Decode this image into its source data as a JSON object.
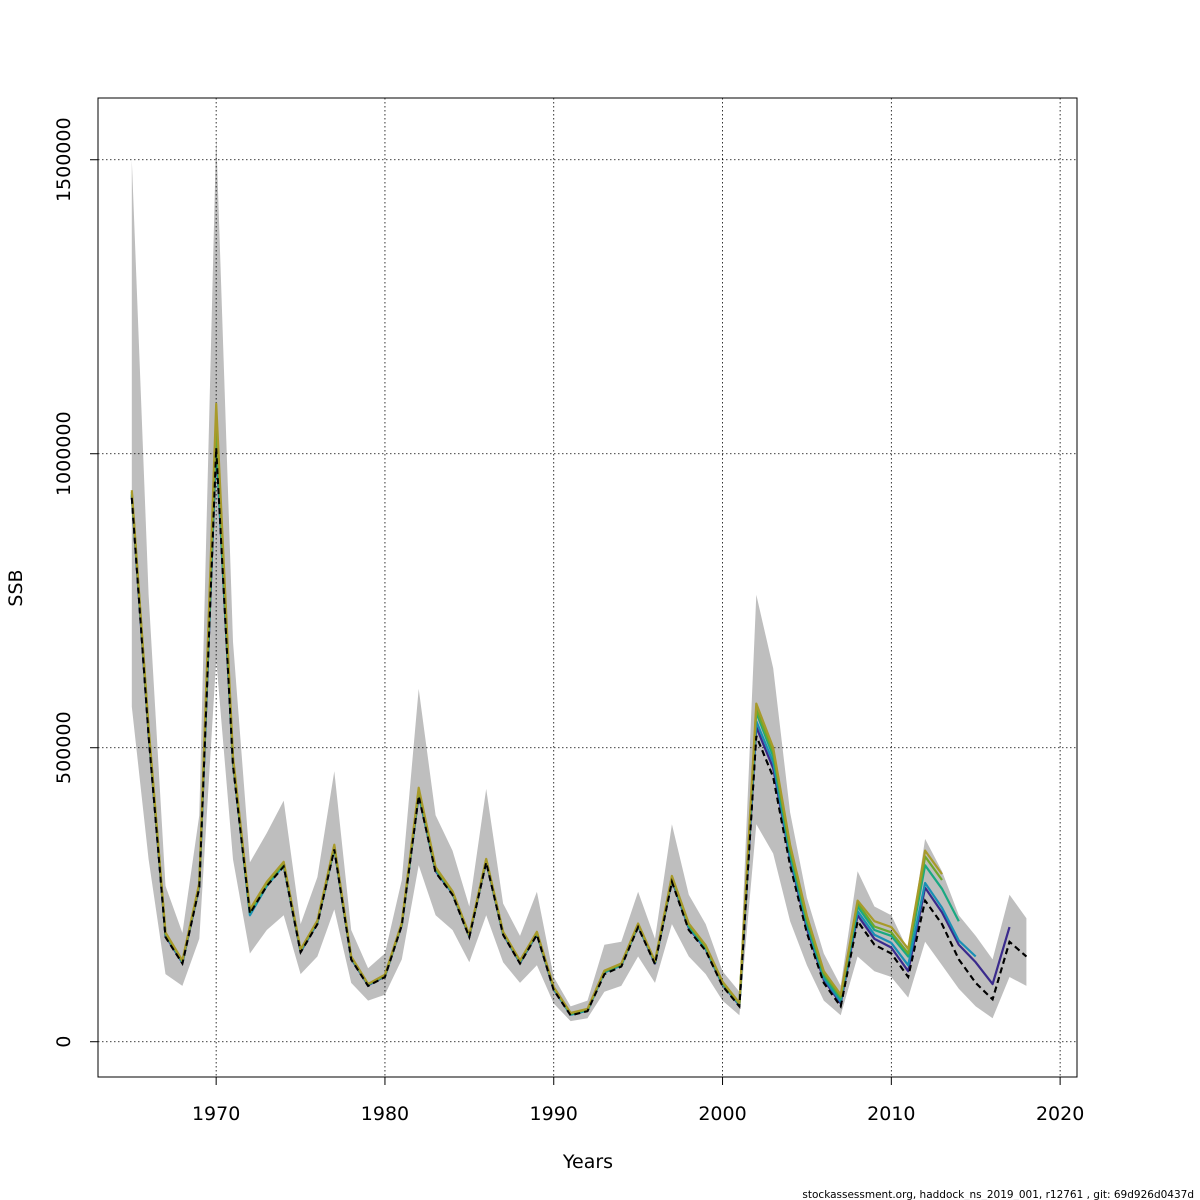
{
  "chart_data": {
    "type": "line",
    "title": "",
    "xlabel": "Years",
    "ylabel": "SSB",
    "xlim": [
      1963,
      2021
    ],
    "ylim": [
      -60000,
      1605000
    ],
    "xticks": [
      1970,
      1980,
      1990,
      2000,
      2010,
      2020
    ],
    "yticks": [
      0,
      500000,
      1000000,
      1500000
    ],
    "grid": true,
    "footer": "stockassessment.org, haddock_ns_2019_001, r12761 , git: 69d926d0437d",
    "confidence_band": {
      "x": [
        1965,
        1966,
        1967,
        1968,
        1969,
        1970,
        1971,
        1972,
        1973,
        1974,
        1975,
        1976,
        1977,
        1978,
        1979,
        1980,
        1981,
        1982,
        1983,
        1984,
        1985,
        1986,
        1987,
        1988,
        1989,
        1990,
        1991,
        1992,
        1993,
        1994,
        1995,
        1996,
        1997,
        1998,
        1999,
        2000,
        2001,
        2002,
        2003,
        2004,
        2005,
        2006,
        2007,
        2008,
        2009,
        2010,
        2011,
        2012,
        2013,
        2014,
        2015,
        2016,
        2017,
        2018
      ],
      "lower": [
        570000,
        310000,
        115000,
        95000,
        175000,
        650000,
        310000,
        150000,
        190000,
        215000,
        115000,
        145000,
        225000,
        100000,
        70000,
        80000,
        140000,
        300000,
        215000,
        190000,
        135000,
        215000,
        135000,
        100000,
        130000,
        65000,
        35000,
        40000,
        85000,
        95000,
        145000,
        100000,
        200000,
        145000,
        115000,
        70000,
        45000,
        370000,
        320000,
        205000,
        130000,
        70000,
        45000,
        145000,
        120000,
        110000,
        75000,
        170000,
        130000,
        90000,
        60000,
        40000,
        110000,
        95000
      ],
      "upper": [
        1500000,
        760000,
        265000,
        185000,
        385000,
        1540000,
        680000,
        305000,
        355000,
        410000,
        200000,
        280000,
        460000,
        190000,
        125000,
        150000,
        275000,
        600000,
        385000,
        325000,
        230000,
        430000,
        235000,
        180000,
        255000,
        110000,
        60000,
        70000,
        165000,
        170000,
        255000,
        175000,
        370000,
        250000,
        200000,
        120000,
        85000,
        760000,
        635000,
        390000,
        245000,
        150000,
        95000,
        290000,
        230000,
        215000,
        155000,
        345000,
        290000,
        215000,
        180000,
        140000,
        250000,
        210000
      ]
    },
    "series": [
      {
        "name": "",
        "color": "#000000",
        "dash": true,
        "x": [
          1965,
          1966,
          1967,
          1968,
          1969,
          1970,
          1971,
          1972,
          1973,
          1974,
          1975,
          1976,
          1977,
          1978,
          1979,
          1980,
          1981,
          1982,
          1983,
          1984,
          1985,
          1986,
          1987,
          1988,
          1989,
          1990,
          1991,
          1992,
          1993,
          1994,
          1995,
          1996,
          1997,
          1998,
          1999,
          2000,
          2001,
          2002,
          2003,
          2004,
          2005,
          2006,
          2007,
          2008,
          2009,
          2010,
          2011,
          2012,
          2013,
          2014,
          2015,
          2016,
          2017,
          2018
        ],
        "y": [
          925000,
          520000,
          178000,
          133000,
          262000,
          1010000,
          470000,
          218000,
          265000,
          298000,
          152000,
          200000,
          327000,
          140000,
          95000,
          110000,
          198000,
          418000,
          288000,
          250000,
          178000,
          305000,
          182000,
          133000,
          182000,
          88000,
          45000,
          52000,
          115000,
          128000,
          195000,
          132000,
          272000,
          190000,
          155000,
          95000,
          60000,
          520000,
          450000,
          300000,
          185000,
          100000,
          60000,
          205000,
          165000,
          150000,
          110000,
          240000,
          200000,
          140000,
          100000,
          72000,
          170000,
          145000
        ]
      },
      {
        "name": "",
        "color": "#3a2a8c",
        "dash": false,
        "x": [
          1965,
          1966,
          1967,
          1968,
          1969,
          1970,
          1971,
          1972,
          1973,
          1974,
          1975,
          1976,
          1977,
          1978,
          1979,
          1980,
          1981,
          1982,
          1983,
          1984,
          1985,
          1986,
          1987,
          1988,
          1989,
          1990,
          1991,
          1992,
          1993,
          1994,
          1995,
          1996,
          1997,
          1998,
          1999,
          2000,
          2001,
          2002,
          2003,
          2004,
          2005,
          2006,
          2007,
          2008,
          2009,
          2010,
          2011,
          2012,
          2013,
          2014,
          2015,
          2016,
          2017
        ],
        "y": [
          928000,
          525000,
          180000,
          134000,
          264000,
          1015000,
          475000,
          220000,
          267000,
          300000,
          153000,
          202000,
          329000,
          141000,
          96000,
          111000,
          199000,
          420000,
          290000,
          252000,
          179000,
          307000,
          183000,
          134000,
          183000,
          89000,
          46000,
          53000,
          118000,
          130000,
          197000,
          133000,
          275000,
          193000,
          157000,
          97000,
          62000,
          535000,
          465000,
          310000,
          192000,
          105000,
          65000,
          215000,
          175000,
          160000,
          120000,
          262000,
          220000,
          165000,
          135000,
          98000,
          195000
        ]
      },
      {
        "name": "",
        "color": "#1a8fb5",
        "dash": false,
        "x": [
          1965,
          1966,
          1967,
          1968,
          1969,
          1970,
          1971,
          1972,
          1973,
          1974,
          1975,
          1976,
          1977,
          1978,
          1979,
          1980,
          1981,
          1982,
          1983,
          1984,
          1985,
          1986,
          1987,
          1988,
          1989,
          1990,
          1991,
          1992,
          1993,
          1994,
          1995,
          1996,
          1997,
          1998,
          1999,
          2000,
          2001,
          2002,
          2003,
          2004,
          2005,
          2006,
          2007,
          2008,
          2009,
          2010,
          2011,
          2012,
          2013,
          2014,
          2015
        ],
        "y": [
          930000,
          528000,
          182000,
          135000,
          266000,
          1020000,
          478000,
          215000,
          265000,
          300000,
          154000,
          203000,
          330000,
          142000,
          97000,
          112000,
          200000,
          422000,
          292000,
          253000,
          180000,
          308000,
          184000,
          135000,
          184000,
          90000,
          46000,
          53000,
          118000,
          130000,
          198000,
          134000,
          277000,
          195000,
          158000,
          98000,
          63000,
          545000,
          475000,
          315000,
          198000,
          108000,
          68000,
          222000,
          182000,
          168000,
          130000,
          270000,
          228000,
          172000,
          145000
        ]
      },
      {
        "name": "",
        "color": "#1aa882",
        "dash": false,
        "x": [
          1965,
          1966,
          1967,
          1968,
          1969,
          1970,
          1971,
          1972,
          1973,
          1974,
          1975,
          1976,
          1977,
          1978,
          1979,
          1980,
          1981,
          1982,
          1983,
          1984,
          1985,
          1986,
          1987,
          1988,
          1989,
          1990,
          1991,
          1992,
          1993,
          1994,
          1995,
          1996,
          1997,
          1998,
          1999,
          2000,
          2001,
          2002,
          2003,
          2004,
          2005,
          2006,
          2007,
          2008,
          2009,
          2010,
          2011,
          2012,
          2013,
          2014
        ],
        "y": [
          932000,
          530000,
          183000,
          136000,
          267000,
          1030000,
          480000,
          220000,
          268000,
          302000,
          155000,
          204000,
          331000,
          143000,
          97000,
          112000,
          200000,
          424000,
          293000,
          254000,
          180000,
          309000,
          185000,
          136000,
          185000,
          91000,
          47000,
          54000,
          119000,
          131000,
          199000,
          135000,
          278000,
          197000,
          160000,
          99000,
          64000,
          560000,
          485000,
          322000,
          203000,
          112000,
          72000,
          230000,
          190000,
          180000,
          145000,
          300000,
          260000,
          205000
        ]
      },
      {
        "name": "",
        "color": "#6fa82a",
        "dash": false,
        "x": [
          1965,
          1966,
          1967,
          1968,
          1969,
          1970,
          1971,
          1972,
          1973,
          1974,
          1975,
          1976,
          1977,
          1978,
          1979,
          1980,
          1981,
          1982,
          1983,
          1984,
          1985,
          1986,
          1987,
          1988,
          1989,
          1990,
          1991,
          1992,
          1993,
          1994,
          1995,
          1996,
          1997,
          1998,
          1999,
          2000,
          2001,
          2002,
          2003,
          2004,
          2005,
          2006,
          2007,
          2008,
          2009,
          2010,
          2011,
          2012,
          2013
        ],
        "y": [
          935000,
          532000,
          184000,
          137000,
          268000,
          1060000,
          482000,
          222000,
          270000,
          304000,
          156000,
          205000,
          333000,
          144000,
          98000,
          113000,
          201000,
          428000,
          295000,
          255000,
          181000,
          310000,
          186000,
          137000,
          186000,
          92000,
          48000,
          55000,
          120000,
          132000,
          200000,
          136000,
          280000,
          199000,
          162000,
          100000,
          65000,
          565000,
          492000,
          328000,
          208000,
          116000,
          76000,
          236000,
          196000,
          186000,
          150000,
          315000,
          275000
        ]
      },
      {
        "name": "",
        "color": "#a89a2a",
        "dash": false,
        "x": [
          1965,
          1966,
          1967,
          1968,
          1969,
          1970,
          1971,
          1972,
          1973,
          1974,
          1975,
          1976,
          1977,
          1978,
          1979,
          1980,
          1981,
          1982,
          1983,
          1984,
          1985,
          1986,
          1987,
          1988,
          1989,
          1990,
          1991,
          1992,
          1993,
          1994,
          1995,
          1996,
          1997,
          1998,
          1999,
          2000,
          2001,
          2002,
          2003,
          2004,
          2005,
          2006,
          2007,
          2008,
          2009,
          2010,
          2011,
          2012,
          2013
        ],
        "y": [
          938000,
          535000,
          186000,
          138000,
          270000,
          1085000,
          485000,
          225000,
          272000,
          306000,
          157000,
          206000,
          335000,
          145000,
          98000,
          114000,
          202000,
          432000,
          297000,
          256000,
          182000,
          311000,
          187000,
          138000,
          187000,
          93000,
          49000,
          56000,
          121000,
          133000,
          201000,
          137000,
          282000,
          201000,
          164000,
          102000,
          66000,
          575000,
          500000,
          335000,
          214000,
          120000,
          80000,
          240000,
          205000,
          195000,
          158000,
          325000,
          285000
        ]
      }
    ]
  }
}
